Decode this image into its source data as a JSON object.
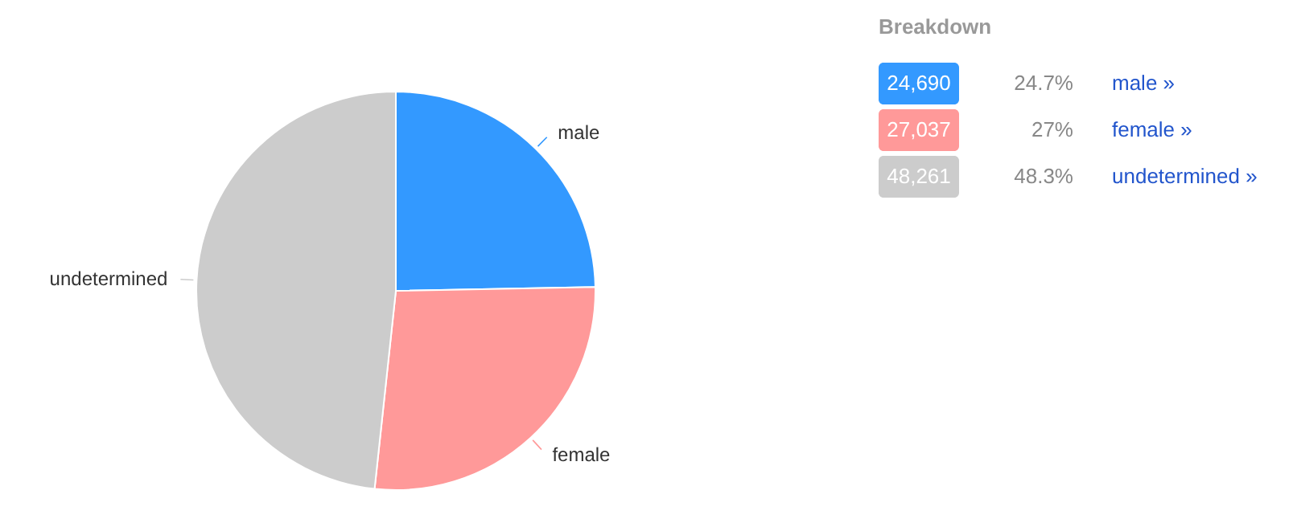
{
  "chart_data": [
    {
      "type": "pie",
      "categories": [
        "male",
        "female",
        "undetermined"
      ],
      "values": [
        24.7,
        27,
        48.3
      ],
      "colors": [
        "#3399ff",
        "#ff9999",
        "#cccccc"
      ]
    },
    {
      "type": "other",
      "title": "Breakdown",
      "colors": [
        "#3399ff",
        "#ff9999",
        "#cccccc"
      ],
      "annotations": [
        "24,690",
        "24.7%",
        "male »",
        "27,037",
        "27%",
        "female »",
        "48,261",
        "48.3%",
        "undetermined »"
      ]
    }
  ]
}
